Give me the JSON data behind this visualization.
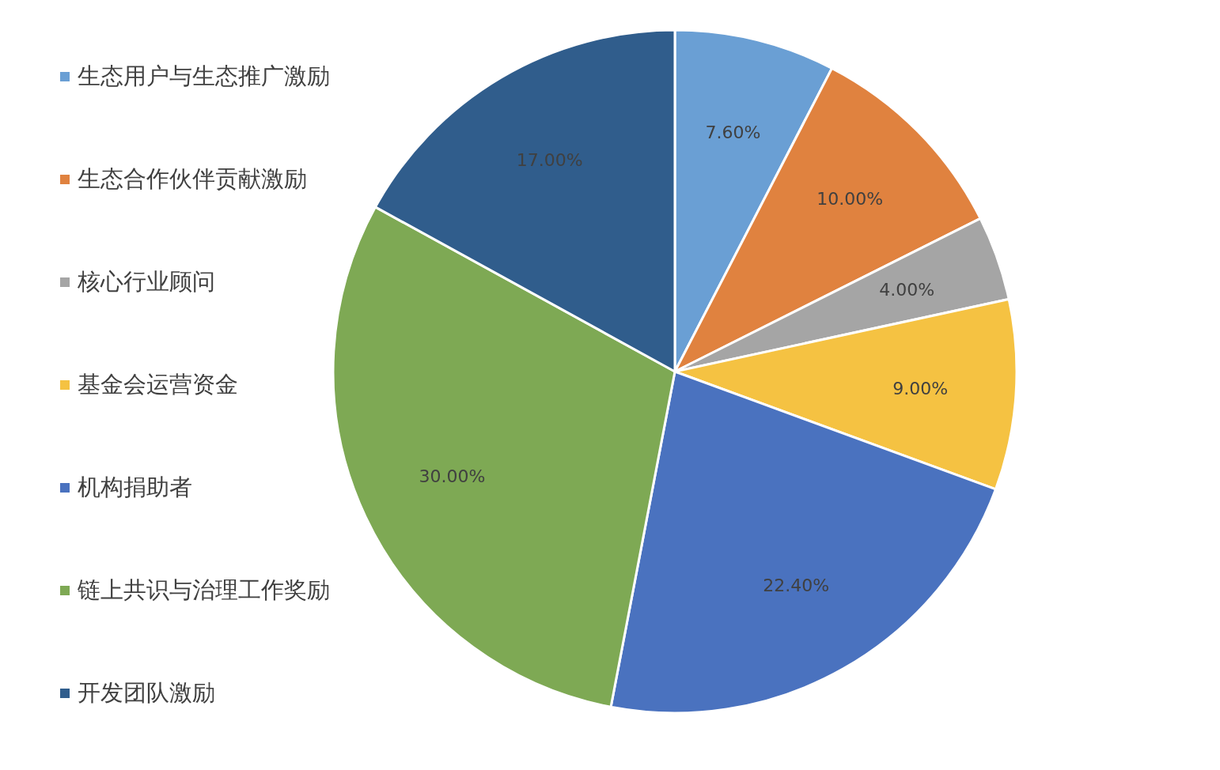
{
  "chart_data": {
    "type": "pie",
    "categories": [
      "生态用户与生态推广激励",
      "生态合作伙伴贡献激励",
      "核心行业顾问",
      "基金会运营资金",
      "机构捐助者",
      "链上共识与治理工作奖励",
      "开发团队激励"
    ],
    "values": [
      7.6,
      10,
      4,
      9,
      22.4,
      30,
      17
    ],
    "value_labels": [
      "7.60%",
      "10.00%",
      "4.00%",
      "9.00%",
      "22.40%",
      "30.00%",
      "17.00%"
    ],
    "colors": [
      "#6a9fd4",
      "#e0823f",
      "#a5a5a5",
      "#f5c242",
      "#4a72bf",
      "#7ea954",
      "#305d8c"
    ],
    "legend": "left"
  }
}
